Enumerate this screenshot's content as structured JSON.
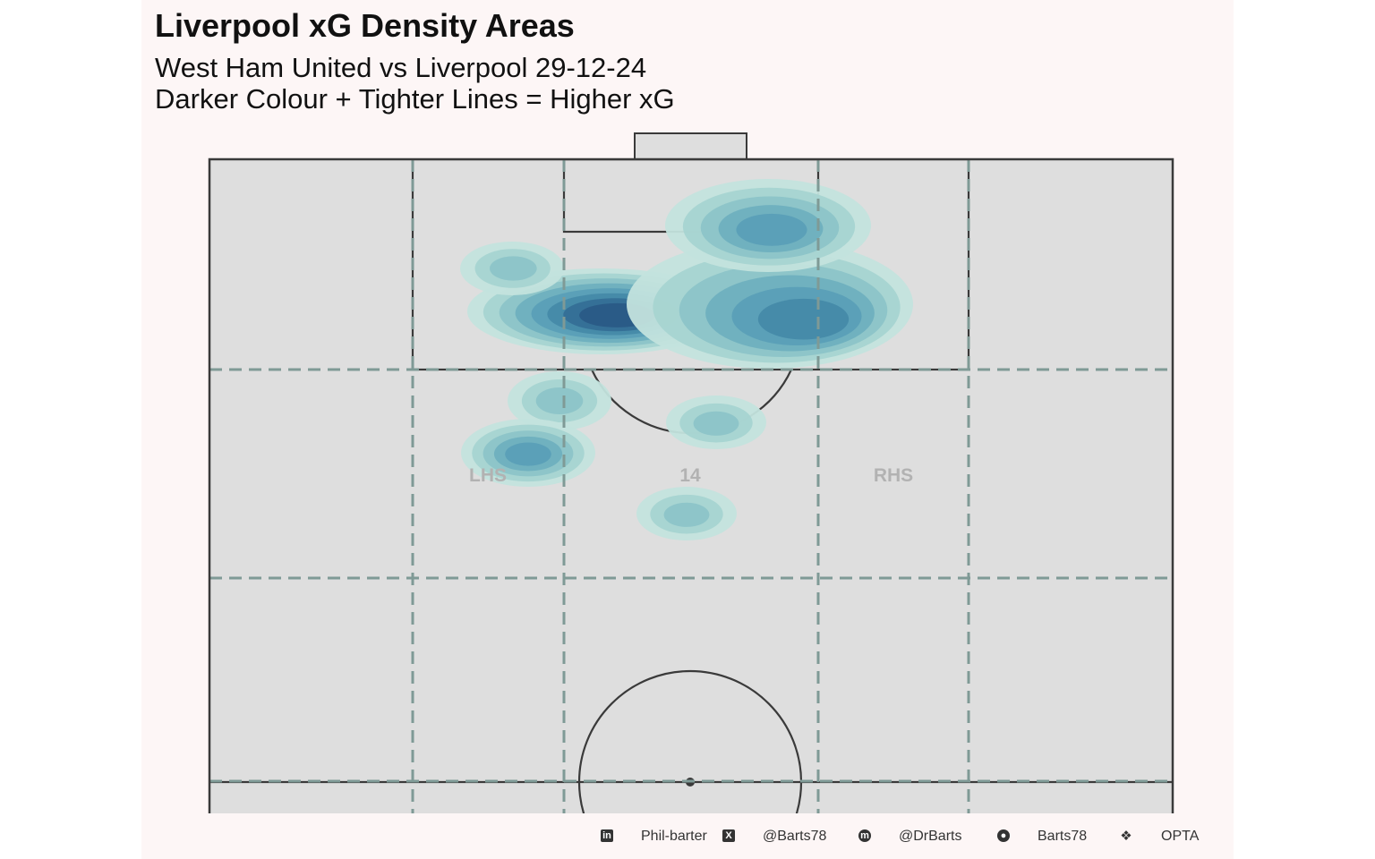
{
  "chart_data": {
    "type": "heatmap",
    "title": "Liverpool xG Density Areas",
    "subtitle_lines": [
      "West Ham United vs Liverpool 29-12-24",
      "Darker Colour + Tighter Lines = Higher xG"
    ],
    "zone_labels": [
      "LHS",
      "14",
      "RHS"
    ],
    "density_palette": [
      "#c3e3dd",
      "#a7d4d1",
      "#8cc4c8",
      "#6fb0bf",
      "#5a9fb7",
      "#468aa8",
      "#356f96",
      "#2a5a86"
    ],
    "density_blobs": [
      {
        "zone": "box-left-of-centre",
        "peak_level": 8
      },
      {
        "zone": "box-right-of-centre",
        "peak_level": 6
      },
      {
        "zone": "six-yard-right",
        "peak_level": 5
      },
      {
        "zone": "box-far-left",
        "peak_level": 3
      },
      {
        "zone": "left-channel-edge-of-box",
        "peak_level": 3
      },
      {
        "zone": "left-half-space",
        "peak_level": 5
      },
      {
        "zone": "arc-of-box",
        "peak_level": 3
      },
      {
        "zone": "central-zone-14",
        "peak_level": 3
      }
    ],
    "grid": true,
    "legend": "none"
  },
  "footer": {
    "linkedin_icon": "linkedin-icon",
    "linkedin": "Phil-barter",
    "x_icon": "x-icon",
    "x": "@Barts78",
    "mastodon_icon": "mastodon-icon",
    "mastodon": "@DrBarts",
    "github_icon": "github-icon",
    "github": "Barts78",
    "dropbox_icon": "dropbox-icon",
    "source": "OPTA"
  },
  "colors": {
    "background": "#fdf6f6",
    "pitch": "#dedede",
    "pitch_lines": "#3a3a3a",
    "zone_lines": "#7f9a96"
  }
}
